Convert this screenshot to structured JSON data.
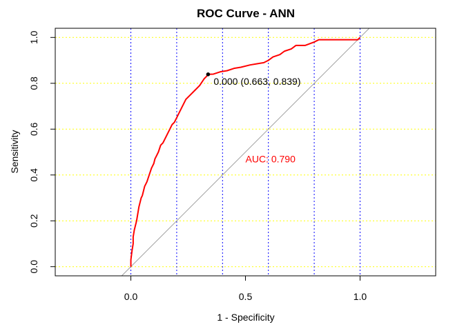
{
  "chart_data": {
    "type": "line",
    "title": "ROC Curve - ANN",
    "xlabel": "1 - Specificity",
    "ylabel": "Sensitivity",
    "xlim": [
      -0.33,
      1.33
    ],
    "ylim": [
      -0.04,
      1.04
    ],
    "x_ticks": [
      "0.0",
      "0.5",
      "1.0"
    ],
    "y_ticks": [
      "0.0",
      "0.2",
      "0.4",
      "0.6",
      "0.8",
      "1.0"
    ],
    "grid": {
      "vertical": [
        0.0,
        0.2,
        0.4,
        0.6,
        0.8,
        1.0
      ],
      "vertical_color": "#0000ff",
      "horizontal": [
        0.0,
        0.2,
        0.4,
        0.6,
        0.8,
        1.0
      ],
      "horizontal_color": "#ffff00"
    },
    "diagonal_color": "#a0a0a0",
    "curve_color": "#ff0000",
    "series": [
      {
        "x": [
          0.0,
          0.0,
          0.005,
          0.01,
          0.01,
          0.015,
          0.02,
          0.025,
          0.03,
          0.035,
          0.04,
          0.045,
          0.05,
          0.055,
          0.06,
          0.07,
          0.08,
          0.09,
          0.1,
          0.105,
          0.11,
          0.12,
          0.13,
          0.14,
          0.15,
          0.16,
          0.17,
          0.18,
          0.19,
          0.2,
          0.21,
          0.22,
          0.23,
          0.24,
          0.26,
          0.28,
          0.3,
          0.32,
          0.33,
          0.337,
          0.36,
          0.39,
          0.42,
          0.45,
          0.48,
          0.52,
          0.55,
          0.58,
          0.6,
          0.62,
          0.65,
          0.67,
          0.7,
          0.72,
          0.76,
          0.8,
          0.82,
          0.9,
          0.99,
          1.0
        ],
        "y": [
          0.0,
          0.03,
          0.07,
          0.1,
          0.13,
          0.16,
          0.18,
          0.2,
          0.23,
          0.26,
          0.28,
          0.3,
          0.31,
          0.33,
          0.35,
          0.37,
          0.4,
          0.43,
          0.45,
          0.47,
          0.48,
          0.5,
          0.53,
          0.54,
          0.56,
          0.58,
          0.6,
          0.62,
          0.63,
          0.65,
          0.67,
          0.69,
          0.71,
          0.73,
          0.75,
          0.77,
          0.79,
          0.82,
          0.83,
          0.839,
          0.84,
          0.85,
          0.855,
          0.865,
          0.87,
          0.88,
          0.885,
          0.89,
          0.9,
          0.915,
          0.925,
          0.94,
          0.95,
          0.965,
          0.965,
          0.98,
          0.99,
          0.99,
          0.99,
          1.0
        ]
      }
    ],
    "point": {
      "x": 0.337,
      "y": 0.839,
      "label": "0.000 (0.663, 0.839)"
    },
    "auc_label": "AUC: 0.790",
    "auc_label_position": {
      "x": 0.5,
      "y": 0.47
    },
    "auc_color": "#ff0000"
  }
}
